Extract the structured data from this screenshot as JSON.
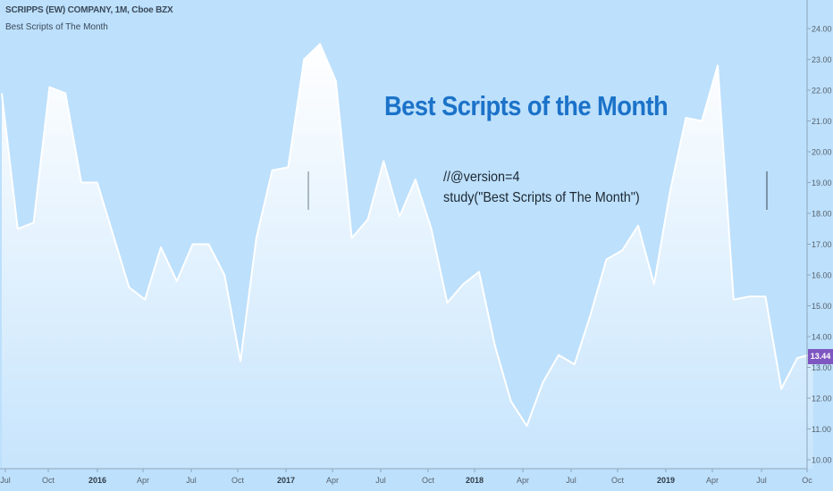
{
  "header": {
    "symbol_line": "SCRIPPS (EW) COMPANY, 1M, Cboe BZX",
    "study_line": "Best Scripts of The Month"
  },
  "annotation": {
    "title": "Best Scripts of the Month",
    "code_line_1": "//@version=4",
    "code_line_2": "study(\"Best Scripts of The Month\")"
  },
  "last_price": "13.44",
  "colors": {
    "background": "#bde0fc",
    "line": "#ffffff",
    "title": "#1b72c8",
    "price_badge": "#7e57c2"
  },
  "chart_data": {
    "type": "area",
    "x_ticks": [
      "Jul",
      "Oct",
      "2016",
      "Apr",
      "Jul",
      "Oct",
      "2017",
      "Apr",
      "Jul",
      "Oct",
      "2018",
      "Apr",
      "Jul",
      "Oct",
      "2019",
      "Apr",
      "Jul",
      "Oc"
    ],
    "year_ticks": [
      "2016",
      "2017",
      "2018",
      "2019"
    ],
    "y_ticks": [
      "24.00",
      "23.00",
      "22.00",
      "21.00",
      "20.00",
      "19.00",
      "18.00",
      "17.00",
      "16.00",
      "15.00",
      "14.00",
      "13.00",
      "12.00",
      "11.00",
      "10.00"
    ],
    "ylim": [
      10,
      24.5
    ],
    "x_start": "2015-07",
    "monthly_values": [
      21.9,
      17.5,
      17.7,
      22.1,
      21.9,
      19.0,
      19.0,
      17.3,
      15.6,
      15.2,
      16.9,
      15.8,
      17.0,
      17.0,
      16.0,
      13.2,
      17.2,
      19.4,
      19.5,
      23.0,
      23.5,
      22.3,
      17.2,
      17.8,
      19.7,
      17.9,
      19.1,
      17.5,
      15.1,
      15.7,
      16.1,
      13.7,
      11.9,
      11.1,
      12.5,
      13.4,
      13.1,
      14.7,
      16.5,
      16.8,
      17.6,
      15.7,
      18.7,
      21.1,
      21.0,
      22.8,
      15.2,
      15.3,
      15.3,
      12.3,
      13.3,
      13.44
    ],
    "last_value": 13.44
  }
}
